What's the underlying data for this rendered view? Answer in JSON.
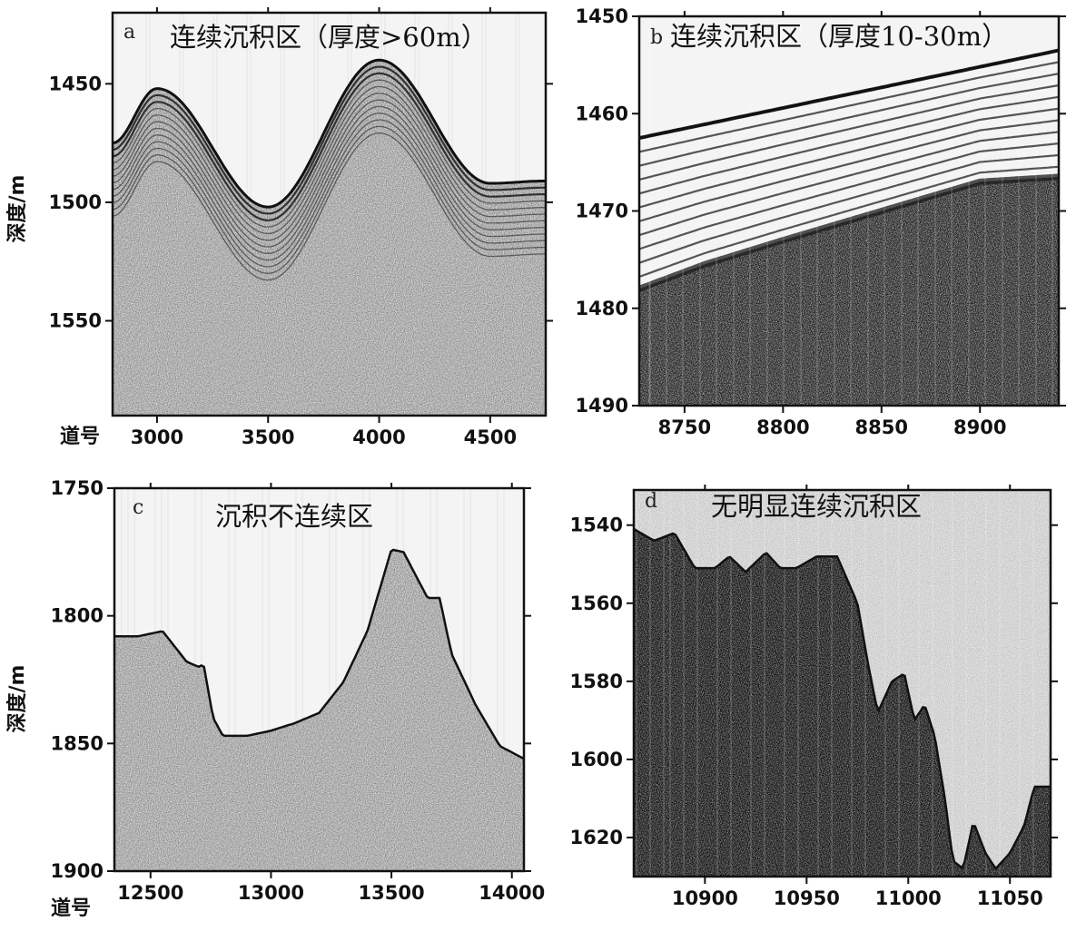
{
  "chart_data": [
    {
      "type": "seismic_profile",
      "panel_letter": "a",
      "title": "连续沉积区（厚度>60m）",
      "ylabel": "深度/m",
      "xlabel": "道号",
      "xlim": [
        2800,
        4750
      ],
      "ylim": [
        1420,
        1590
      ],
      "y_inverted": true,
      "x_ticks": [
        3000,
        3500,
        4000,
        4500
      ],
      "y_ticks": [
        1450,
        1500,
        1550
      ],
      "seafloor": {
        "x": [
          2800,
          3000,
          3500,
          4000,
          4500,
          4750
        ],
        "y": [
          1475,
          1452,
          1502,
          1440,
          1492,
          1491
        ]
      },
      "layer_count": 12,
      "layer_spacing_m": 2.8
    },
    {
      "type": "seismic_profile",
      "panel_letter": "b",
      "title": "连续沉积区（厚度10-30m）",
      "ylabel": "",
      "xlabel": "",
      "xlim": [
        8727,
        8940
      ],
      "ylim": [
        1450,
        1490
      ],
      "y_inverted": true,
      "x_ticks": [
        8750,
        8800,
        8850,
        8900
      ],
      "y_ticks": [
        1450,
        1460,
        1470,
        1480,
        1490
      ],
      "seafloor": {
        "x": [
          8727,
          8940
        ],
        "y": [
          1462.5,
          1453.5
        ]
      },
      "sediment_base": {
        "x": [
          8727,
          8760,
          8800,
          8850,
          8900,
          8940
        ],
        "y": [
          1478,
          1475.5,
          1473,
          1470,
          1467,
          1466.5
        ]
      },
      "layer_count": 11
    },
    {
      "type": "seismic_profile",
      "panel_letter": "c",
      "title": "沉积不连续区",
      "ylabel": "深度/m",
      "xlabel": "道号",
      "xlim": [
        12350,
        14050
      ],
      "ylim": [
        1750,
        1900
      ],
      "y_inverted": true,
      "x_ticks": [
        12500,
        13000,
        13500,
        14000
      ],
      "y_ticks": [
        1750,
        1800,
        1850,
        1900
      ],
      "seafloor": {
        "x": [
          12350,
          12450,
          12550,
          12650,
          12700,
          12720,
          12760,
          12800,
          12900,
          13000,
          13100,
          13200,
          13300,
          13400,
          13500,
          13550,
          13600,
          13650,
          13700,
          13750,
          13850,
          13950,
          14050
        ],
        "y": [
          1808,
          1808,
          1806,
          1818,
          1820,
          1819,
          1840,
          1847,
          1847,
          1845,
          1842,
          1838,
          1826,
          1806,
          1774,
          1775,
          1784,
          1793,
          1793,
          1815,
          1835,
          1851,
          1856
        ]
      },
      "layer_count": 0
    },
    {
      "type": "seismic_profile",
      "panel_letter": "d",
      "title": "无明显连续沉积区",
      "ylabel": "",
      "xlabel": "",
      "xlim": [
        10865,
        11070
      ],
      "ylim": [
        1531,
        1630
      ],
      "y_inverted": true,
      "x_ticks": [
        10900,
        10950,
        11000,
        11050
      ],
      "y_ticks": [
        1540,
        1560,
        1580,
        1600,
        1620
      ],
      "seafloor": {
        "x": [
          10865,
          10875,
          10885,
          10895,
          10905,
          10912,
          10920,
          10930,
          10937,
          10945,
          10955,
          10965,
          10975,
          10980,
          10985,
          10992,
          10998,
          11003,
          11008,
          11013,
          11018,
          11022,
          11027,
          11032,
          11038,
          11043,
          11050,
          11057,
          11062,
          11070
        ],
        "y": [
          1541,
          1544,
          1542,
          1551,
          1551,
          1548,
          1552,
          1547,
          1551,
          1551,
          1548,
          1548,
          1560,
          1575,
          1588,
          1580,
          1578,
          1590,
          1586,
          1594,
          1610,
          1626,
          1628,
          1616,
          1624,
          1628,
          1624,
          1617,
          1607,
          1607
        ]
      },
      "layer_count": 0
    }
  ]
}
